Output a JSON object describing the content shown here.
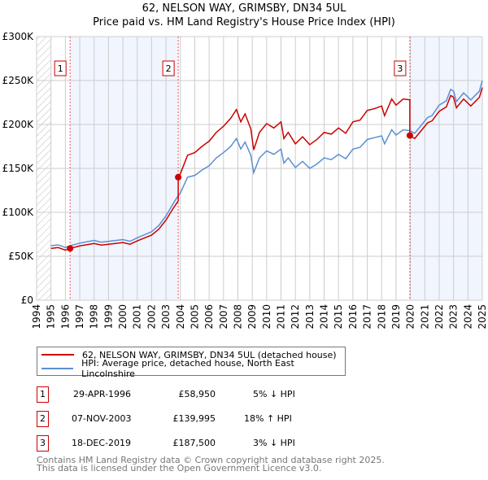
{
  "chart_data": {
    "type": "line",
    "title": "62, NELSON WAY, GRIMSBY, DN34 5UL",
    "subtitle": "Price paid vs. HM Land Registry's House Price Index (HPI)",
    "xlim": [
      1994,
      2025
    ],
    "ylim": [
      0,
      300000
    ],
    "x_ticks": [
      "1994",
      "1995",
      "1996",
      "1997",
      "1998",
      "1999",
      "2000",
      "2001",
      "2002",
      "2003",
      "2004",
      "2005",
      "2006",
      "2007",
      "2008",
      "2009",
      "2010",
      "2011",
      "2012",
      "2013",
      "2014",
      "2015",
      "2016",
      "2017",
      "2018",
      "2019",
      "2020",
      "2021",
      "2022",
      "2023",
      "2024",
      "2025"
    ],
    "y_ticks": [
      {
        "v": 0,
        "label": "£0"
      },
      {
        "v": 50000,
        "label": "£50K"
      },
      {
        "v": 100000,
        "label": "£100K"
      },
      {
        "v": 150000,
        "label": "£150K"
      },
      {
        "v": 200000,
        "label": "£200K"
      },
      {
        "v": 250000,
        "label": "£250K"
      },
      {
        "v": 300000,
        "label": "£300K"
      }
    ],
    "grid": true,
    "series": [
      {
        "name": "62, NELSON WAY, GRIMSBY, DN34 5UL (detached house)",
        "color": "#cc0000",
        "x": [
          1995,
          1995.5,
          1996,
          1996.33,
          1997,
          1998,
          1998.5,
          1999,
          2000,
          2000.5,
          2001,
          2002,
          2002.5,
          2003,
          2003.5,
          2003.85,
          2003.85,
          2004,
          2004.5,
          2005,
          2005.5,
          2006,
          2006.5,
          2007,
          2007.5,
          2007.9,
          2008.2,
          2008.5,
          2008.9,
          2009.1,
          2009.5,
          2010,
          2010.5,
          2011,
          2011.2,
          2011.5,
          2012,
          2012.5,
          2013,
          2013.5,
          2014,
          2014.5,
          2015,
          2015.5,
          2016,
          2016.5,
          2017,
          2017.5,
          2018,
          2018.2,
          2018.7,
          2019,
          2019.5,
          2019.96,
          2019.96,
          2020.3,
          2020.8,
          2021.2,
          2021.5,
          2022,
          2022.5,
          2022.8,
          2023,
          2023.2,
          2023.7,
          2024.2,
          2024.8,
          2025
        ],
        "y": [
          58900,
          59900,
          57000,
          58950,
          61800,
          64600,
          62700,
          63700,
          65600,
          63700,
          67500,
          74100,
          80800,
          91200,
          104500,
          113000,
          139995,
          144000,
          165000,
          168000,
          175000,
          181000,
          191000,
          198000,
          207000,
          217000,
          203000,
          212000,
          195000,
          171000,
          191000,
          201000,
          196000,
          203000,
          184000,
          191000,
          178000,
          186000,
          177000,
          183000,
          191000,
          189000,
          196000,
          190000,
          203000,
          205000,
          216000,
          218000,
          221000,
          210000,
          229000,
          222000,
          229000,
          228000,
          187500,
          184000,
          194000,
          202000,
          204000,
          215000,
          220000,
          233000,
          231000,
          219000,
          229000,
          221000,
          231000,
          242000
        ]
      },
      {
        "name": "HPI: Average price, detached house, North East Lincolnshire",
        "color": "#5b8fd4",
        "x": [
          1995,
          1995.5,
          1996,
          1996.33,
          1997,
          1998,
          1998.5,
          1999,
          2000,
          2000.5,
          2001,
          2002,
          2002.5,
          2003,
          2003.5,
          2003.85,
          2004,
          2004.5,
          2005,
          2005.5,
          2006,
          2006.5,
          2007,
          2007.5,
          2007.9,
          2008.2,
          2008.5,
          2008.9,
          2009.1,
          2009.5,
          2010,
          2010.5,
          2011,
          2011.2,
          2011.5,
          2012,
          2012.5,
          2013,
          2013.5,
          2014,
          2014.5,
          2015,
          2015.5,
          2016,
          2016.5,
          2017,
          2017.5,
          2018,
          2018.2,
          2018.7,
          2019,
          2019.5,
          2019.96,
          2020.3,
          2020.8,
          2021.2,
          2021.5,
          2022,
          2022.5,
          2022.8,
          2023,
          2023.2,
          2023.7,
          2024.2,
          2024.8,
          2025
        ],
        "y": [
          62000,
          63000,
          60000,
          62000,
          65000,
          68000,
          66000,
          67000,
          69000,
          67000,
          71000,
          78000,
          85000,
          96000,
          110000,
          119000,
          122000,
          140000,
          142000,
          148000,
          153000,
          162000,
          168000,
          175000,
          184000,
          172000,
          180000,
          165000,
          145000,
          162000,
          170000,
          166000,
          172000,
          156000,
          162000,
          151000,
          158000,
          150000,
          155000,
          162000,
          160000,
          166000,
          161000,
          172000,
          174000,
          183000,
          185000,
          187000,
          178000,
          194000,
          188000,
          194000,
          193000,
          190000,
          200000,
          208000,
          210000,
          222000,
          227000,
          240000,
          238000,
          226000,
          236000,
          228000,
          238000,
          250000
        ]
      }
    ],
    "sales": [
      {
        "id": "1",
        "x": 1996.33,
        "y": 58950,
        "date": "29-APR-1996",
        "price": "£58,950",
        "hpi": "5% ↓ HPI"
      },
      {
        "id": "2",
        "x": 2003.85,
        "y": 139995,
        "date": "07-NOV-2003",
        "price": "£139,995",
        "hpi": "18% ↑ HPI"
      },
      {
        "id": "3",
        "x": 2019.96,
        "y": 187500,
        "date": "18-DEC-2019",
        "price": "£187,500",
        "hpi": "3% ↓ HPI"
      }
    ],
    "shaded_ranges": [
      [
        1996.33,
        2003.85
      ],
      [
        2019.96,
        2025
      ]
    ],
    "hatched_range": [
      1994,
      1995
    ]
  },
  "footer": {
    "line1": "Contains HM Land Registry data © Crown copyright and database right 2025.",
    "line2": "This data is licensed under the Open Government Licence v3.0."
  }
}
